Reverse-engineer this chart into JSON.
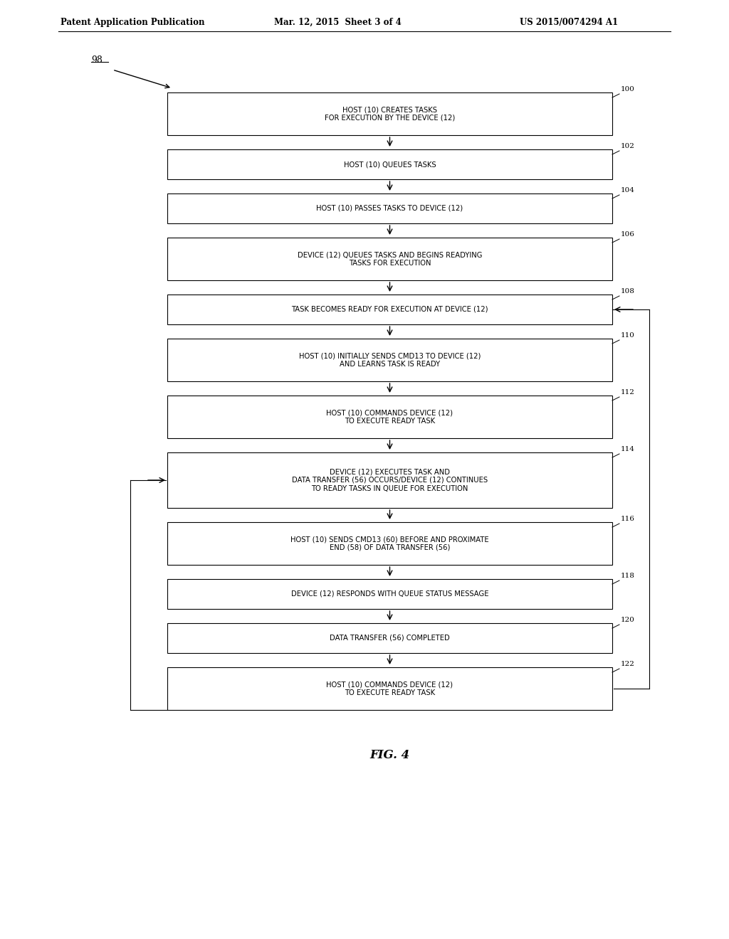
{
  "header_left": "Patent Application Publication",
  "header_mid": "Mar. 12, 2015  Sheet 3 of 4",
  "header_right": "US 2015/0074294 A1",
  "figure_label": "FIG. 4",
  "diagram_label": "98",
  "background_color": "#ffffff",
  "boxes": [
    {
      "id": 100,
      "label": "100",
      "text": "HOST (10) CREATES TASKS\nFOR EXECUTION BY THE DEVICE (12)",
      "lines": 2
    },
    {
      "id": 102,
      "label": "102",
      "text": "HOST (10) QUEUES TASKS",
      "lines": 1
    },
    {
      "id": 104,
      "label": "104",
      "text": "HOST (10) PASSES TASKS TO DEVICE (12)",
      "lines": 1
    },
    {
      "id": 106,
      "label": "106",
      "text": "DEVICE (12) QUEUES TASKS AND BEGINS READYING\nTASKS FOR EXECUTION",
      "lines": 2
    },
    {
      "id": 108,
      "label": "108",
      "text": "TASK BECOMES READY FOR EXECUTION AT DEVICE (12)",
      "lines": 1,
      "has_right_arrow_in": true
    },
    {
      "id": 110,
      "label": "110",
      "text": "HOST (10) INITIALLY SENDS CMD13 TO DEVICE (12)\nAND LEARNS TASK IS READY",
      "lines": 2
    },
    {
      "id": 112,
      "label": "112",
      "text": "HOST (10) COMMANDS DEVICE (12)\nTO EXECUTE READY TASK",
      "lines": 2
    },
    {
      "id": 114,
      "label": "114",
      "text": "DEVICE (12) EXECUTES TASK AND\nDATA TRANSFER (56) OCCURS/DEVICE (12) CONTINUES\nTO READY TASKS IN QUEUE FOR EXECUTION",
      "lines": 3,
      "has_left_arrow_in": true
    },
    {
      "id": 116,
      "label": "116",
      "text": "HOST (10) SENDS CMD13 (60) BEFORE AND PROXIMATE\nEND (58) OF DATA TRANSFER (56)",
      "lines": 2
    },
    {
      "id": 118,
      "label": "118",
      "text": "DEVICE (12) RESPONDS WITH QUEUE STATUS MESSAGE",
      "lines": 1
    },
    {
      "id": 120,
      "label": "120",
      "text": "DATA TRANSFER (56) COMPLETED",
      "lines": 1
    },
    {
      "id": 122,
      "label": "122",
      "text": "HOST (10) COMMANDS DEVICE (12)\nTO EXECUTE READY TASK",
      "lines": 2
    }
  ]
}
